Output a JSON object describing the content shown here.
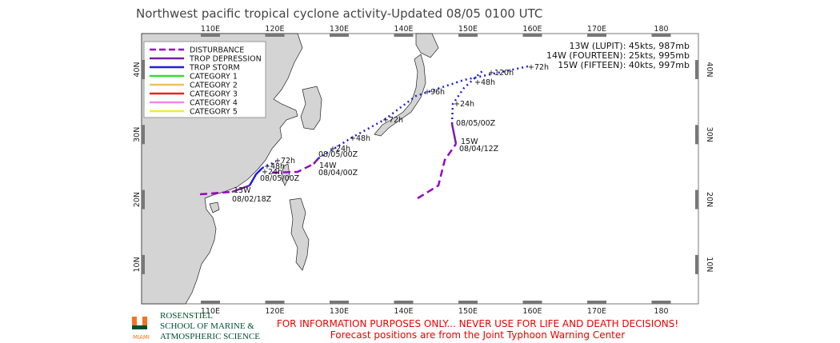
{
  "header": {
    "title": "Northwest pacific tropical cyclone activity-Updated 08/05 0100 UTC"
  },
  "map": {
    "lon_labels": [
      "110E",
      "120E",
      "130E",
      "140E",
      "150E",
      "160E",
      "170E",
      "180"
    ],
    "lat_labels": [
      "40N",
      "30N",
      "20N",
      "10N"
    ],
    "legend": [
      {
        "label": "DISTURBANCE",
        "color": "#9900cc",
        "style": "dashed"
      },
      {
        "label": "TROP DEPRESSION",
        "color": "#7a1fa2",
        "style": "solid"
      },
      {
        "label": "TROP STORM",
        "color": "#1f1fdd",
        "style": "solid"
      },
      {
        "label": "CATEGORY 1",
        "color": "#33dd33",
        "style": "solid"
      },
      {
        "label": "CATEGORY 2",
        "color": "#f0c060",
        "style": "solid"
      },
      {
        "label": "CATEGORY 3",
        "color": "#ee2222",
        "style": "solid"
      },
      {
        "label": "CATEGORY 4",
        "color": "#ee88ee",
        "style": "solid"
      },
      {
        "label": "CATEGORY 5",
        "color": "#eeee33",
        "style": "solid"
      }
    ],
    "storms": [
      "13W (LUPIT): 45kts, 987mb",
      "14W (FOURTEEN): 25kts, 995mb",
      "15W (FIFTEEN): 40kts, 997mb"
    ],
    "track_labels": [
      "+72h",
      "+48h",
      "+24h",
      "08/05/00Z",
      "13W",
      "08/02/18Z",
      "08/05/00Z",
      "+24h",
      "14W",
      "08/04/00Z",
      "+48h",
      "+72h",
      "+96h",
      "+72h",
      "08/05/00Z",
      "15W",
      "08/04/12Z",
      "+24h",
      "+48h",
      "+120h"
    ]
  },
  "footer": {
    "logo": "MIAMI",
    "institution": [
      "ROSENSTIEL",
      "SCHOOL OF MARINE &",
      "ATMOSPHERIC SCIENCE"
    ],
    "disclaimer": [
      "FOR INFORMATION PURPOSES ONLY... NEVER USE FOR LIFE AND DEATH DECISIONS!",
      "Forecast positions are from the Joint Typhoon Warning Center"
    ]
  }
}
